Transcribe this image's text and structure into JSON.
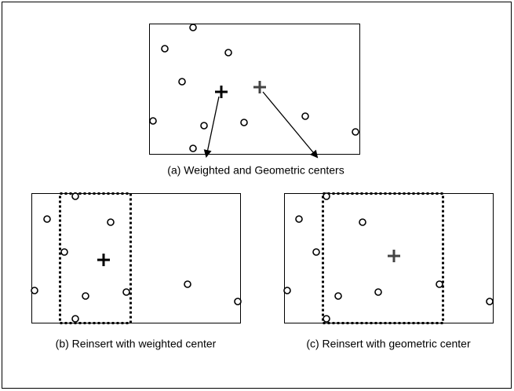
{
  "captions": [
    "(a) Weighted and Geometric centers",
    "(b) Reinsert with weighted center",
    "(c) Reinsert with geometric center"
  ]
}
